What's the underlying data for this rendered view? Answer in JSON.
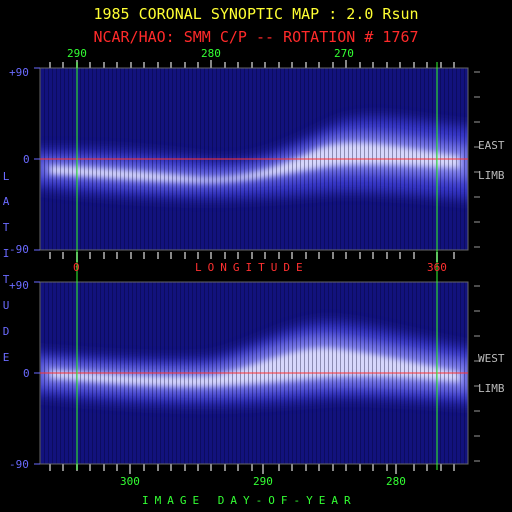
{
  "title": "1985 CORONAL SYNOPTIC MAP : 2.0 Rsun",
  "subtitle": "NCAR/HAO: SMM C/P -- ROTATION # 1767",
  "colors": {
    "title": "#ffff33",
    "subtitle": "#ff2a2a",
    "background": "#000000",
    "map_dark": "#0a0a50",
    "map_mid": "#3c3ccc",
    "map_bright": "#e6e6ff",
    "equator_line": "#ff3030",
    "boundary_line": "#33ff33",
    "axis_label": "#6a6aff"
  },
  "top_axis_ticks": [
    "290",
    "280",
    "270"
  ],
  "latitude_ticks_top": [
    "+90",
    "0",
    "-90"
  ],
  "latitude_ticks_bottom": [
    "+90",
    "0",
    "-90"
  ],
  "latitude_label_letters": [
    "L",
    "A",
    "T",
    "I",
    "T",
    "U",
    "D",
    "E"
  ],
  "longitude_ticks": [
    "0",
    "360"
  ],
  "longitude_label": "LONGITUDE",
  "bottom_axis_ticks": [
    "300",
    "290",
    "280"
  ],
  "bottom_axis_label": "IMAGE DAY-OF-YEAR",
  "top_map": {
    "side_label_1": "EAST",
    "side_label_2": "LIMB"
  },
  "bottom_map": {
    "side_label_1": "WEST",
    "side_label_2": "LIMB"
  }
}
